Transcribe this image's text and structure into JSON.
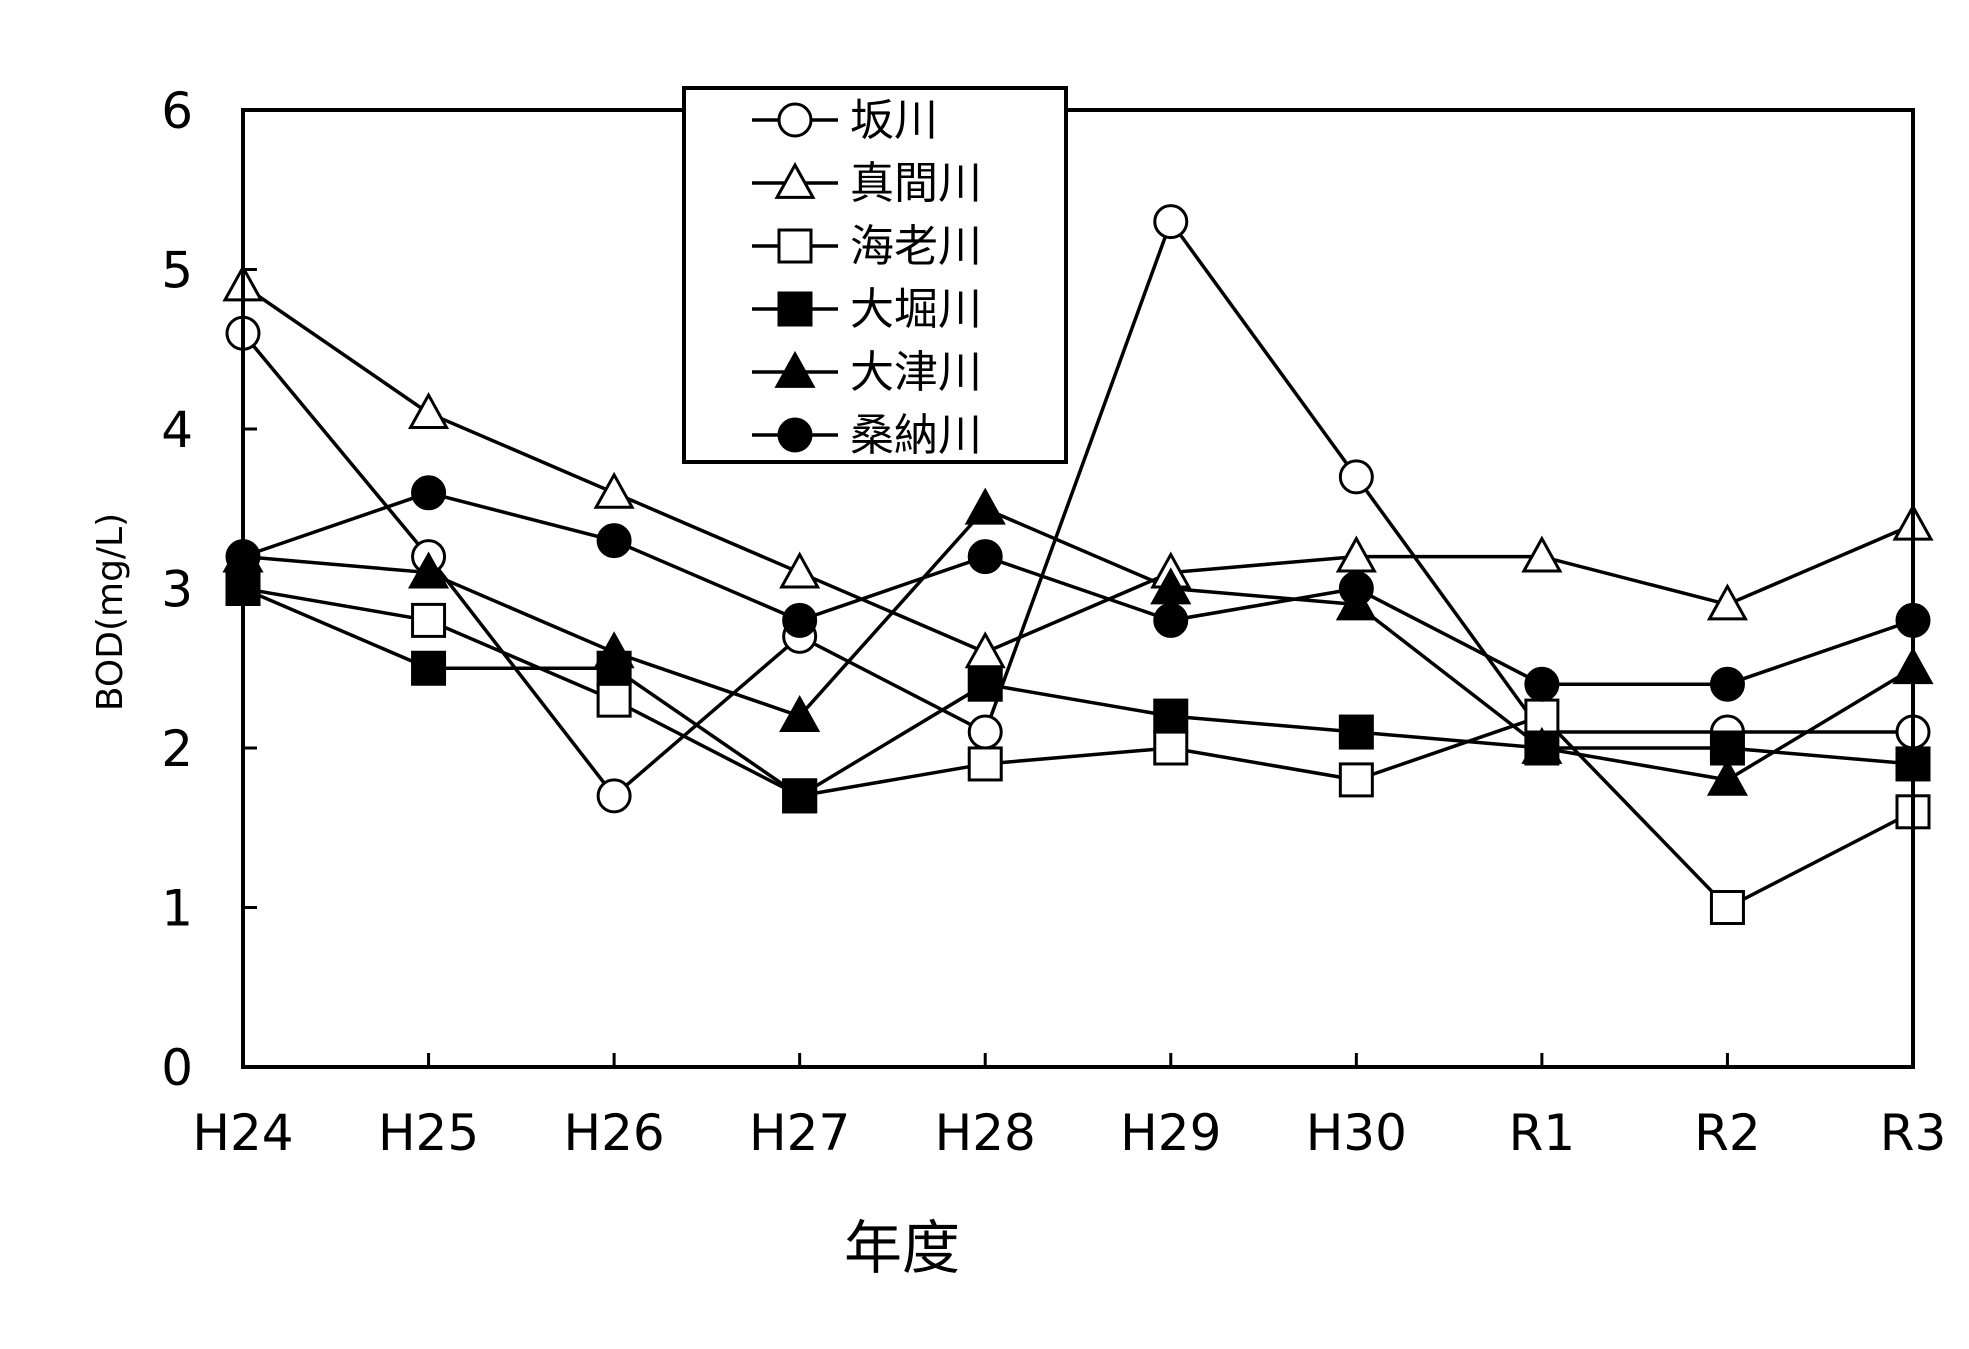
{
  "chart_data": {
    "type": "line",
    "title": "",
    "xlabel": "年度",
    "ylabel": "BOD(mg/L)",
    "categories": [
      "H24",
      "H25",
      "H26",
      "H27",
      "H28",
      "H29",
      "H30",
      "R1",
      "R2",
      "R3"
    ],
    "ylim": [
      0,
      6
    ],
    "yticks": [
      0,
      1,
      2,
      3,
      4,
      5,
      6
    ],
    "grid": false,
    "legend_position": "top-left inside",
    "series": [
      {
        "name": "坂川",
        "marker": "circle",
        "filled": false,
        "values": [
          4.6,
          3.2,
          1.7,
          2.7,
          2.1,
          5.3,
          3.7,
          2.1,
          2.1,
          2.1
        ]
      },
      {
        "name": "真間川",
        "marker": "triangle",
        "filled": false,
        "values": [
          4.9,
          4.1,
          3.6,
          3.1,
          2.6,
          3.1,
          3.2,
          3.2,
          2.9,
          3.4
        ]
      },
      {
        "name": "海老川",
        "marker": "square",
        "filled": false,
        "values": [
          3.0,
          2.8,
          2.3,
          1.7,
          1.9,
          2.0,
          1.8,
          2.2,
          1.0,
          1.6
        ]
      },
      {
        "name": "大堀川",
        "marker": "square",
        "filled": true,
        "values": [
          3.0,
          2.5,
          2.5,
          1.7,
          2.4,
          2.2,
          2.1,
          2.0,
          2.0,
          1.9
        ]
      },
      {
        "name": "大津川",
        "marker": "triangle",
        "filled": true,
        "values": [
          3.2,
          3.1,
          2.6,
          2.2,
          3.5,
          3.0,
          2.9,
          2.0,
          1.8,
          2.5
        ]
      },
      {
        "name": "桑納川",
        "marker": "circle",
        "filled": true,
        "values": [
          3.2,
          3.6,
          3.3,
          2.8,
          3.2,
          2.8,
          3.0,
          2.4,
          2.4,
          2.8
        ]
      }
    ]
  }
}
